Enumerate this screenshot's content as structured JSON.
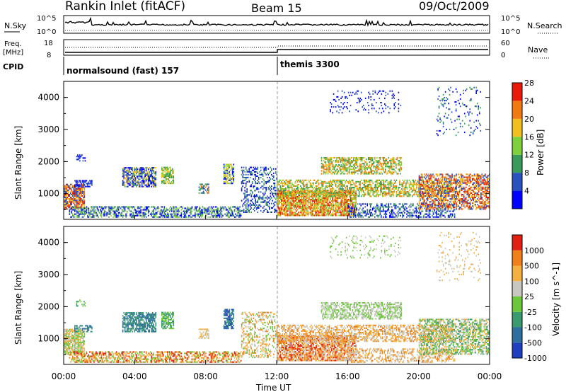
{
  "header": {
    "title": "Rankin Inlet (fitACF)",
    "beam": "Beam 15",
    "date": "09/Oct/2009"
  },
  "nsky_panel": {
    "label": "N.Sky",
    "right_label": "N.Search",
    "left_ticks": [
      "10^5",
      "10^0"
    ],
    "right_ticks": [
      "10^5",
      "10^0"
    ]
  },
  "freq_panel": {
    "label_top": "Freq.",
    "label_unit": "[MHz]",
    "left_ticks": [
      "18",
      "8"
    ],
    "right_label": "Nave",
    "right_ticks": [
      "60",
      "0"
    ]
  },
  "cpid_panel": {
    "label": "CPID",
    "modes": [
      {
        "name": "normalsound (fast) 157",
        "start_hour": 0
      },
      {
        "name": "themis 3300",
        "start_hour": 12
      }
    ]
  },
  "chart_data": [
    {
      "type": "heatmap",
      "name": "power",
      "ylabel": "Slant Range [km]",
      "y_ticks": [
        "1000",
        "2000",
        "3000",
        "4000"
      ],
      "ylim": [
        200,
        4500
      ],
      "x_range_hours": [
        0,
        24
      ],
      "colorbar": {
        "label": "Power [dB]",
        "ticks": [
          "4",
          "8",
          "12",
          "16",
          "20",
          "24",
          "28"
        ],
        "colors": [
          "#0000ff",
          "#2a52be",
          "#3a9a5b",
          "#7fd13b",
          "#f0c020",
          "#f07a10",
          "#e81a0a"
        ]
      }
    },
    {
      "type": "heatmap",
      "name": "velocity",
      "ylabel": "Slant Range [km]",
      "y_ticks": [
        "1000",
        "2000",
        "3000",
        "4000"
      ],
      "ylim": [
        200,
        4500
      ],
      "x_range_hours": [
        0,
        24
      ],
      "colorbar": {
        "label": "Velocity [m s^-1]",
        "ticks": [
          "1000",
          "500",
          "100",
          "25",
          "-25",
          "-100",
          "-500",
          "-1000"
        ],
        "colors": [
          "#1f3fbf",
          "#2f6fa0",
          "#3a9a70",
          "#6cc83a",
          "#c8c8c0",
          "#f4b040",
          "#f08018",
          "#e02010"
        ]
      }
    }
  ],
  "x_axis": {
    "ticks": [
      "00:00",
      "04:00",
      "08:00",
      "12:00",
      "16:00",
      "20:00",
      "00:00"
    ],
    "label": "Time UT"
  }
}
